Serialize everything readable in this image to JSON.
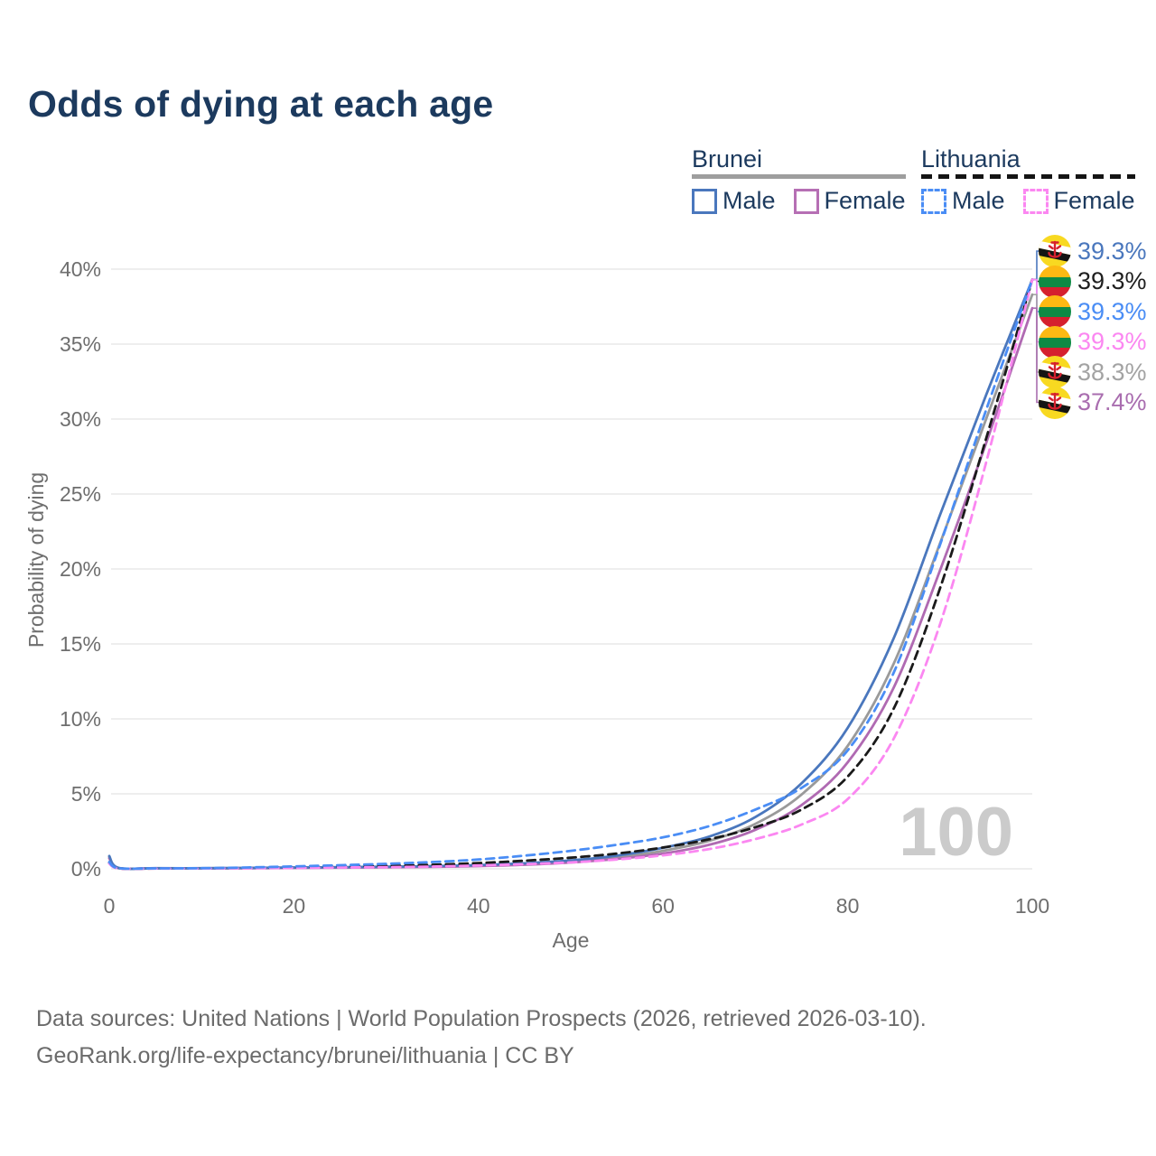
{
  "title": "Odds of dying at each age",
  "legend": {
    "groups": [
      {
        "title": "Brunei",
        "line_style": "solid",
        "line_color": "#9e9e9e",
        "items": [
          {
            "label": "Male",
            "color": "#4a77bd"
          },
          {
            "label": "Female",
            "color": "#b66fb4"
          }
        ]
      },
      {
        "title": "Lithuania",
        "line_style": "dashed",
        "line_color": "#141414",
        "items": [
          {
            "label": "Male",
            "color": "#4a8df5"
          },
          {
            "label": "Female",
            "color": "#fb87f1"
          }
        ]
      }
    ]
  },
  "watermark": "100",
  "footer": {
    "line1": "Data sources: United Nations | World Population Prospects (2026, retrieved 2026-03-10).",
    "line2": "GeoRank.org/life-expectancy/brunei/lithuania | CC BY"
  },
  "chart_data": {
    "type": "line",
    "title": "Odds of dying at each age",
    "xlabel": "Age",
    "ylabel": "Probability of dying",
    "x_ticks": [
      0,
      20,
      40,
      60,
      80,
      100
    ],
    "y_ticks_pct": [
      0,
      5,
      10,
      15,
      20,
      25,
      30,
      35,
      40
    ],
    "y_tick_labels": [
      "0%",
      "5%",
      "10%",
      "15%",
      "20%",
      "25%",
      "30%",
      "35%",
      "40%"
    ],
    "xlim": [
      0,
      100
    ],
    "ylim": [
      0,
      40
    ],
    "grid": "horizontal",
    "legend_position": "top-right",
    "ages": [
      0,
      1,
      5,
      10,
      15,
      20,
      25,
      30,
      35,
      40,
      45,
      50,
      55,
      60,
      65,
      70,
      75,
      80,
      85,
      90,
      95,
      100
    ],
    "series": [
      {
        "name": "Brunei total",
        "country": "Brunei",
        "sex": "both",
        "color": "#9a9a9a",
        "dash": false,
        "values_pct": [
          0.78,
          0.055,
          0.035,
          0.035,
          0.05,
          0.07,
          0.09,
          0.12,
          0.15,
          0.21,
          0.32,
          0.49,
          0.76,
          1.2,
          1.87,
          3.0,
          4.95,
          8.2,
          13.7,
          21.7,
          30.0,
          38.3
        ]
      },
      {
        "name": "Brunei Female",
        "country": "Brunei",
        "sex": "female",
        "color": "#b06ab2",
        "dash": false,
        "values_pct": [
          0.7,
          0.05,
          0.03,
          0.03,
          0.04,
          0.06,
          0.08,
          0.1,
          0.13,
          0.18,
          0.27,
          0.42,
          0.66,
          1.02,
          1.6,
          2.6,
          4.25,
          7.1,
          12.1,
          19.9,
          28.4,
          37.4
        ]
      },
      {
        "name": "Brunei Male",
        "country": "Brunei",
        "sex": "male",
        "color": "#4a77bd",
        "dash": false,
        "values_pct": [
          0.85,
          0.06,
          0.04,
          0.04,
          0.06,
          0.09,
          0.11,
          0.14,
          0.18,
          0.25,
          0.37,
          0.56,
          0.88,
          1.4,
          2.15,
          3.45,
          5.7,
          9.4,
          15.4,
          23.6,
          31.6,
          39.3
        ]
      },
      {
        "name": "Lithuania total",
        "country": "Lithuania",
        "sex": "both",
        "color": "#1a1a1a",
        "dash": true,
        "values_pct": [
          0.4,
          0.035,
          0.025,
          0.03,
          0.06,
          0.1,
          0.14,
          0.19,
          0.27,
          0.38,
          0.54,
          0.74,
          1.02,
          1.42,
          1.97,
          2.78,
          3.95,
          6.15,
          10.7,
          18.7,
          28.7,
          39.3
        ]
      },
      {
        "name": "Lithuania Female",
        "country": "Lithuania",
        "sex": "female",
        "color": "#fb87f1",
        "dash": true,
        "values_pct": [
          0.35,
          0.03,
          0.02,
          0.025,
          0.04,
          0.06,
          0.09,
          0.11,
          0.15,
          0.22,
          0.31,
          0.43,
          0.62,
          0.9,
          1.32,
          1.98,
          2.95,
          4.65,
          8.7,
          16.3,
          27.1,
          39.3
        ]
      },
      {
        "name": "Lithuania Male",
        "country": "Lithuania",
        "sex": "male",
        "color": "#4a8df5",
        "dash": true,
        "values_pct": [
          0.45,
          0.04,
          0.03,
          0.04,
          0.09,
          0.16,
          0.24,
          0.33,
          0.45,
          0.62,
          0.88,
          1.2,
          1.6,
          2.1,
          2.85,
          3.95,
          5.4,
          7.9,
          13.1,
          21.6,
          30.6,
          39.3
        ]
      }
    ],
    "end_labels": [
      {
        "series": "Brunei Male",
        "flag": "bn",
        "value": "39.3%",
        "value_pct": 39.3,
        "color": "#4a77bd"
      },
      {
        "series": "Lithuania total",
        "flag": "lt",
        "value": "39.3%",
        "value_pct": 39.3,
        "color": "#1f1f1f"
      },
      {
        "series": "Lithuania Male",
        "flag": "lt",
        "value": "39.3%",
        "value_pct": 39.3,
        "color": "#4a8df5"
      },
      {
        "series": "Lithuania Female",
        "flag": "lt",
        "value": "39.3%",
        "value_pct": 39.3,
        "color": "#fb87f1"
      },
      {
        "series": "Brunei total",
        "flag": "bn",
        "value": "38.3%",
        "value_pct": 38.3,
        "color": "#a3a3a3"
      },
      {
        "series": "Brunei Female",
        "flag": "bn",
        "value": "37.4%",
        "value_pct": 37.4,
        "color": "#a96daf"
      }
    ]
  }
}
